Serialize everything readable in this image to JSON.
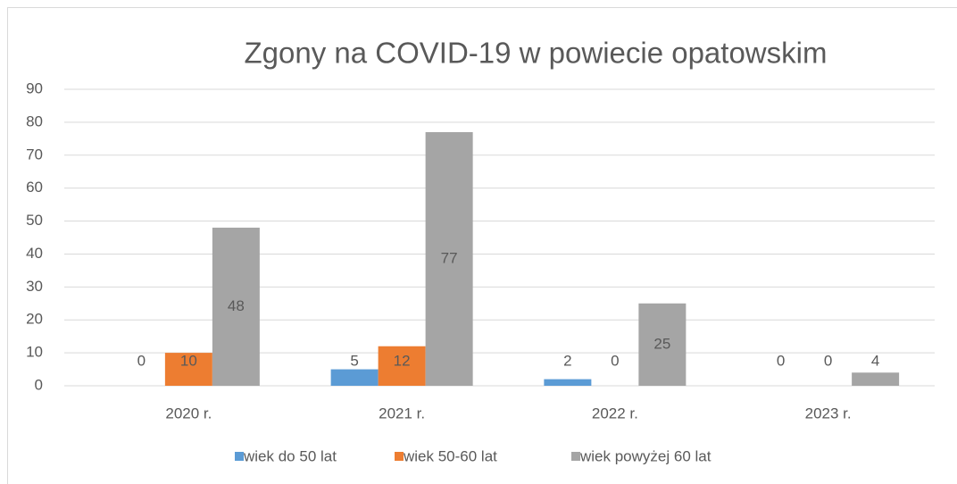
{
  "chart_data": {
    "type": "bar",
    "title": "Zgony na COVID-19 w powiecie opatowskim",
    "categories": [
      "2020 r.",
      "2021 r.",
      "2022 r.",
      "2023 r."
    ],
    "series": [
      {
        "name": "wiek do 50 lat",
        "color": "#5b9bd5",
        "values": [
          0,
          5,
          2,
          0
        ]
      },
      {
        "name": "wiek 50-60 lat",
        "color": "#ed7d31",
        "values": [
          10,
          12,
          0,
          0
        ]
      },
      {
        "name": "wiek powyżej 60 lat",
        "color": "#a5a5a5",
        "values": [
          48,
          77,
          25,
          4
        ]
      }
    ],
    "ylim": [
      0,
      90
    ],
    "yticks": [
      0,
      10,
      20,
      30,
      40,
      50,
      60,
      70,
      80,
      90
    ],
    "grid": true,
    "legend": "bottom"
  }
}
